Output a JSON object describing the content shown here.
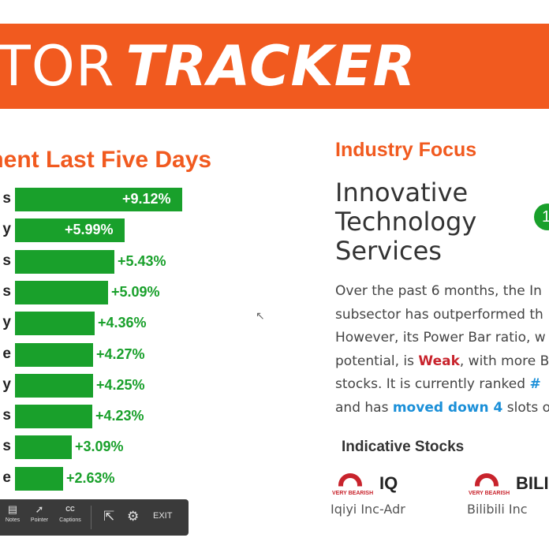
{
  "banner": {
    "text_light": "TOR",
    "text_bold": "TRACKER"
  },
  "chart_title": "ment Last Five Days",
  "chart_data": {
    "type": "bar",
    "title": "ment Last Five Days",
    "categories": [
      "s",
      "y",
      "s",
      "s",
      "y",
      "e",
      "y",
      "s",
      "s",
      "e"
    ],
    "values": [
      9.12,
      5.99,
      5.43,
      5.09,
      4.36,
      4.27,
      4.25,
      4.23,
      3.09,
      2.63
    ],
    "labels": [
      "+9.12%",
      "+5.99%",
      "+5.43%",
      "+5.09%",
      "+4.36%",
      "+4.27%",
      "+4.25%",
      "+4.23%",
      "+3.09%",
      "+2.63%"
    ],
    "bar_color": "#19a02b",
    "label_inside_color": "#ffffff",
    "label_outside_color": "#19a02b"
  },
  "focus": {
    "heading": "Industry Focus",
    "title": "Innovative Technology Services",
    "rank_badge": "1",
    "paragraph": {
      "l1": "Over the past 6 months, the In",
      "l2": "subsector has outperformed th",
      "l3": "However, its Power Bar ratio, w",
      "l4_a": "potential, is ",
      "l4_weak": "Weak",
      "l4_b": ", with more B",
      "l5_a": "stocks. It is currently ranked ",
      "l5_hash": "#",
      "l6_a": "and has ",
      "l6_move": "moved down 4",
      "l6_b": " slots o"
    }
  },
  "indicative": {
    "heading": "Indicative Stocks",
    "stocks": [
      {
        "ticker": "IQ",
        "name": "Iqiyi Inc-Adr",
        "rating": "VERY BEARISH"
      },
      {
        "ticker": "BILI",
        "name": "Bilibili Inc",
        "rating": "VERY BEARISH"
      }
    ]
  },
  "toolbar": {
    "notes": "Notes",
    "pointer": "Pointer",
    "captions": "Captions",
    "captions_icon": "CC",
    "exit": "EXIT"
  }
}
